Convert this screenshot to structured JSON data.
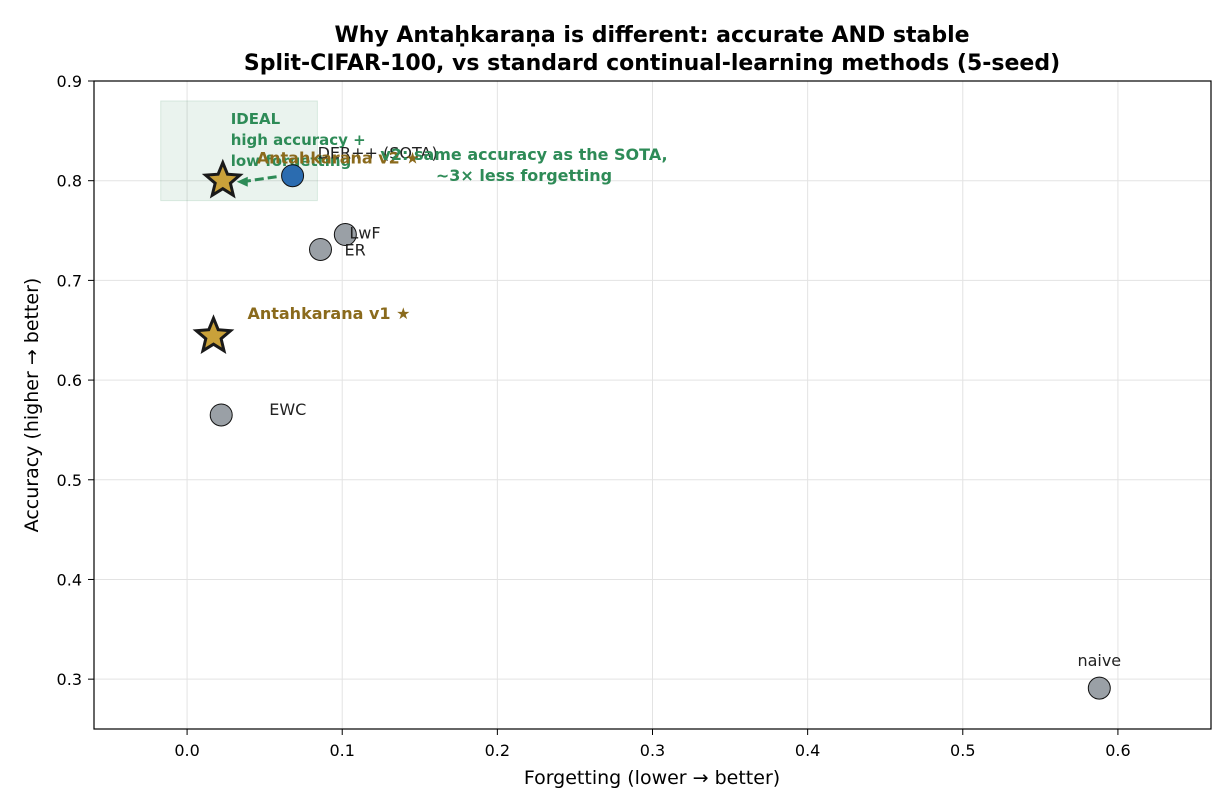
{
  "chart_data": {
    "type": "scatter",
    "title": "Why Antaḥkaraṇa is different: accurate AND stable",
    "subtitle": "Split-CIFAR-100, vs standard continual-learning methods (5-seed)",
    "xlabel": "Forgetting   (lower → better)",
    "ylabel": "Accuracy   (higher → better)",
    "xlim": [
      -0.06,
      0.66
    ],
    "ylim": [
      0.25,
      0.9
    ],
    "xticks": [
      0.0,
      0.1,
      0.2,
      0.3,
      0.4,
      0.5,
      0.6
    ],
    "xtick_labels": [
      "0.0",
      "0.1",
      "0.2",
      "0.3",
      "0.4",
      "0.5",
      "0.6"
    ],
    "yticks": [
      0.3,
      0.4,
      0.5,
      0.6,
      0.7,
      0.8,
      0.9
    ],
    "ytick_labels": [
      "0.3",
      "0.4",
      "0.5",
      "0.6",
      "0.7",
      "0.8",
      "0.9"
    ],
    "grid": true,
    "baselines": [
      {
        "label": "DER++ (SOTA)",
        "x": 0.068,
        "y": 0.805,
        "color": "#2b6cb0"
      },
      {
        "label": "LwF",
        "x": 0.102,
        "y": 0.746,
        "color": "#9aa0a6"
      },
      {
        "label": "ER",
        "x": 0.086,
        "y": 0.731,
        "color": "#9aa0a6"
      },
      {
        "label": "EWC",
        "x": 0.022,
        "y": 0.565,
        "color": "#9aa0a6"
      },
      {
        "label": "naive",
        "x": 0.588,
        "y": 0.291,
        "color": "#9aa0a6"
      }
    ],
    "ours": [
      {
        "label": "Antahkarana v2 ★",
        "x": 0.023,
        "y": 0.8,
        "color": "#c9a13a"
      },
      {
        "label": "Antahkarana v1 ★",
        "x": 0.017,
        "y": 0.644,
        "color": "#c9a13a"
      }
    ],
    "ideal_region": {
      "x_range": [
        -0.017,
        0.084
      ],
      "y_range": [
        0.78,
        0.88
      ],
      "lines": [
        "IDEAL",
        "high accuracy +",
        "low forgetting"
      ],
      "color": "#2e8b57"
    },
    "annotation": {
      "lines": [
        "v2: same accuracy as the SOTA,",
        "~3× less forgetting"
      ],
      "from": {
        "x": 0.068,
        "y": 0.805
      },
      "to": {
        "x": 0.023,
        "y": 0.8
      },
      "color": "#2e8b57"
    }
  }
}
